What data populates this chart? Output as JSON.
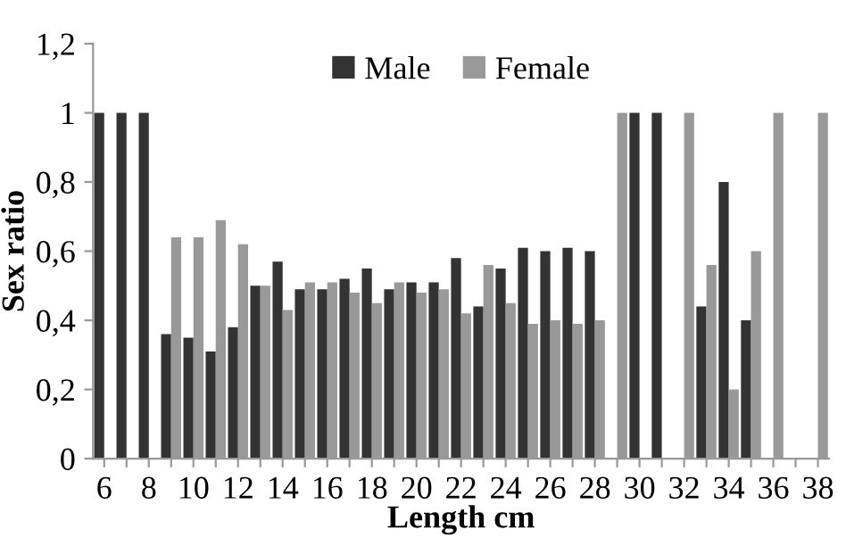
{
  "chart_data": {
    "type": "bar",
    "xlabel": "Length cm",
    "ylabel": "Sex ratio",
    "categories": [
      "6",
      null,
      "8",
      null,
      "10",
      null,
      "12",
      null,
      "14",
      null,
      "16",
      null,
      "18",
      null,
      "20",
      null,
      "22",
      null,
      "24",
      null,
      "26",
      null,
      "28",
      null,
      "30",
      null,
      "32",
      null,
      "34",
      null,
      "36",
      null,
      "38"
    ],
    "series": [
      {
        "name": "Male",
        "color": "#333333",
        "values": [
          1,
          1,
          1,
          0.36,
          0.35,
          0.31,
          0.38,
          0.5,
          0.57,
          0.49,
          0.49,
          0.52,
          0.55,
          0.49,
          0.51,
          0.51,
          0.58,
          0.44,
          0.55,
          0.61,
          0.6,
          0.61,
          0.6,
          0,
          1,
          1,
          0,
          0.44,
          0.8,
          0.4,
          0,
          0,
          0
        ]
      },
      {
        "name": "Female",
        "color": "#999999",
        "values": [
          0,
          0,
          0,
          0.64,
          0.64,
          0.69,
          0.62,
          0.5,
          0.43,
          0.51,
          0.51,
          0.48,
          0.45,
          0.51,
          0.48,
          0.49,
          0.42,
          0.56,
          0.45,
          0.39,
          0.4,
          0.39,
          0.4,
          1,
          0,
          0,
          1,
          0.56,
          0.2,
          0.6,
          1,
          0,
          1
        ]
      }
    ],
    "ylim": [
      0,
      1.2
    ],
    "yticks": [
      0,
      {
        "value": 0.2,
        "label": "0,2"
      },
      {
        "value": 0.4,
        "label": "0,4"
      },
      {
        "value": 0.6,
        "label": "0,6"
      },
      {
        "value": 0.8,
        "label": "0,8"
      },
      1,
      {
        "value": 1.2,
        "label": "1,2"
      }
    ],
    "legend": "top",
    "grid": false
  }
}
